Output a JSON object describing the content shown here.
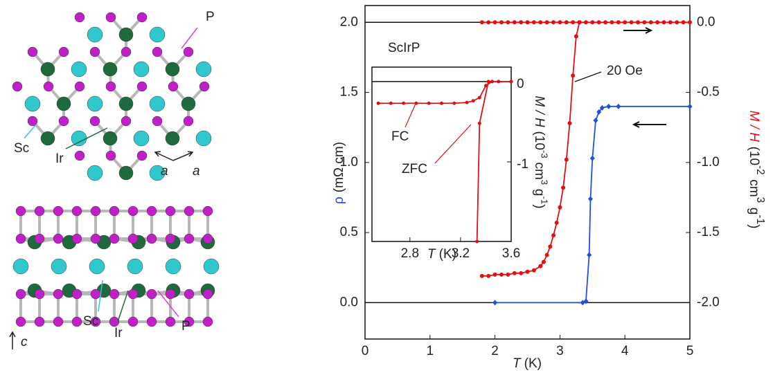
{
  "structure": {
    "top_labels": [
      "P",
      "Sc",
      "Ir",
      "a",
      "a"
    ],
    "bottom_labels": [
      "Sc",
      "Ir",
      "P",
      "c"
    ]
  },
  "chart_data": [
    {
      "type": "line",
      "xlabel": [
        "T",
        "(K)"
      ],
      "ylabel": [
        "ρ",
        "(mΩ cm)"
      ],
      "ylabel_color": "#2244dd",
      "y2label": [
        "M / H",
        "(10",
        "-2",
        "cm",
        "3",
        "g",
        "-1",
        ")"
      ],
      "y2label_color": "#e01010",
      "annotations": [
        "ScIrP",
        "20 Oe"
      ],
      "xlim": [
        0,
        5
      ],
      "xticks": [
        0,
        1,
        2,
        3,
        4,
        5
      ],
      "ylim": [
        -0.26,
        2.12
      ],
      "yticks": [
        {
          "value": 0,
          "label": "0.0"
        },
        {
          "value": 0.5,
          "label": "0.5"
        },
        {
          "value": 1,
          "label": "1.0"
        },
        {
          "value": 1.5,
          "label": "1.5"
        },
        {
          "value": 2,
          "label": "2.0"
        }
      ],
      "y2lim": [
        -2.26,
        0.12
      ],
      "y2ticks": [
        {
          "value": 0,
          "label": "0.0"
        },
        {
          "value": -0.5,
          "label": "-0.5"
        },
        {
          "value": -1,
          "label": "-1.0"
        },
        {
          "value": -1.5,
          "label": "-1.5"
        },
        {
          "value": -2,
          "label": "-2.0"
        }
      ],
      "series": [
        {
          "color": "#1f4fe0",
          "marker": "diamond",
          "x": [
            2.0,
            3.35,
            3.4,
            3.45,
            3.47,
            3.5,
            3.55,
            3.6,
            3.65,
            3.75,
            3.9,
            5.0
          ],
          "values": [
            0,
            0,
            0.01,
            0.34,
            0.74,
            1.03,
            1.3,
            1.36,
            1.39,
            1.4,
            1.4,
            1.4
          ]
        },
        {
          "color": "#e01010",
          "marker": "circle",
          "axis": "y2",
          "x": [
            1.8,
            1.9,
            2.0,
            2.1,
            2.2,
            2.3,
            2.4,
            2.5,
            2.6,
            2.7,
            2.75,
            2.8,
            2.85,
            2.9,
            2.95,
            3.0,
            3.05,
            3.1,
            3.15,
            3.2,
            3.25,
            3.3
          ],
          "values": [
            -1.81,
            -1.81,
            -1.8,
            -1.8,
            -1.8,
            -1.79,
            -1.79,
            -1.78,
            -1.77,
            -1.74,
            -1.71,
            -1.66,
            -1.6,
            -1.52,
            -1.43,
            -1.32,
            -1.18,
            -0.98,
            -0.72,
            -0.38,
            -0.1,
            0
          ]
        },
        {
          "color": "#e01010",
          "marker": "circle",
          "axis": "y2",
          "x": [
            1.8,
            1.9,
            2.0,
            2.1,
            2.2,
            2.3,
            2.4,
            2.5,
            2.6,
            2.7,
            2.8,
            2.9,
            3.0,
            3.1,
            3.2,
            3.3,
            3.4,
            3.5,
            3.6,
            3.7,
            3.8,
            3.9,
            4.0,
            4.1,
            4.2,
            4.3,
            4.4,
            4.5,
            4.6,
            4.7,
            4.8,
            4.9,
            5.0
          ],
          "values": [
            0,
            0,
            0,
            0,
            0,
            0,
            0,
            0,
            0,
            0,
            0,
            0,
            0,
            0,
            0,
            0,
            0,
            0,
            0,
            0,
            0,
            0,
            0,
            0,
            0,
            0,
            0,
            0,
            0,
            0,
            0,
            0,
            0
          ]
        }
      ]
    },
    {
      "type": "line",
      "xlabel": [
        "T",
        "(K)"
      ],
      "ylabel": [
        "M / H",
        "(10",
        "-3",
        "cm",
        "3",
        "g",
        "-1",
        ")"
      ],
      "annotations": [
        "FC",
        "ZFC"
      ],
      "xlim": [
        2.5,
        3.6
      ],
      "xticks": [
        2.8,
        3.2,
        3.6
      ],
      "ylim": [
        -1.99,
        0.18
      ],
      "yticks": [
        0,
        -1
      ],
      "series": [
        {
          "color": "#e01010",
          "marker": "circle",
          "x": [
            2.55,
            2.65,
            2.75,
            2.85,
            2.95,
            3.05,
            3.15,
            3.25,
            3.3,
            3.35,
            3.4,
            3.45,
            3.5,
            3.6
          ],
          "values": [
            -0.27,
            -0.27,
            -0.27,
            -0.27,
            -0.27,
            -0.27,
            -0.27,
            -0.26,
            -0.24,
            -0.2,
            -0.05,
            0,
            0,
            0
          ]
        },
        {
          "color": "#e01010",
          "marker": "circle",
          "x": [
            3.33,
            3.35,
            3.42,
            3.5,
            3.6
          ],
          "values": [
            -1.99,
            -0.52,
            0,
            0,
            0
          ]
        }
      ]
    }
  ]
}
